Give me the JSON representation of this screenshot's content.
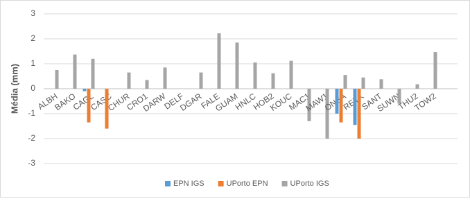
{
  "chart_data": {
    "type": "bar",
    "y_label": "Média (mm)",
    "categories": [
      "ALBH",
      "BAKO",
      "CAGL",
      "CASC",
      "CHUR",
      "CRO1",
      "DARW",
      "DELF",
      "DGAR",
      "FALE",
      "GUAM",
      "HNLC",
      "HOB2",
      "KOUC",
      "MAC1",
      "MAW1",
      "ONSA",
      "REYK",
      "SANT",
      "SUWN",
      "THU2",
      "TOW2"
    ],
    "series": [
      {
        "name": "EPN IGS",
        "color": "#5b9bd5",
        "values": [
          null,
          null,
          -0.1,
          null,
          null,
          null,
          null,
          null,
          null,
          null,
          null,
          null,
          null,
          null,
          null,
          null,
          -1.0,
          -1.45,
          null,
          null,
          null,
          null
        ]
      },
      {
        "name": "UPorto EPN",
        "color": "#ed7d31",
        "values": [
          null,
          null,
          -1.35,
          -1.6,
          null,
          null,
          null,
          null,
          null,
          null,
          null,
          null,
          null,
          null,
          null,
          null,
          -1.35,
          -2.0,
          null,
          null,
          null,
          null
        ]
      },
      {
        "name": "UPorto IGS",
        "color": "#a5a5a5",
        "values": [
          0.75,
          1.37,
          1.2,
          null,
          0.65,
          0.35,
          0.85,
          null,
          0.65,
          2.22,
          1.85,
          1.05,
          0.62,
          1.12,
          -1.3,
          -2.0,
          0.55,
          0.45,
          0.38,
          -0.6,
          0.18,
          1.47
        ]
      }
    ],
    "ylim": [
      -3,
      3
    ],
    "yticks": [
      -3,
      -2,
      -1,
      0,
      1,
      2,
      3
    ],
    "grid": true,
    "legend": "bottom"
  }
}
